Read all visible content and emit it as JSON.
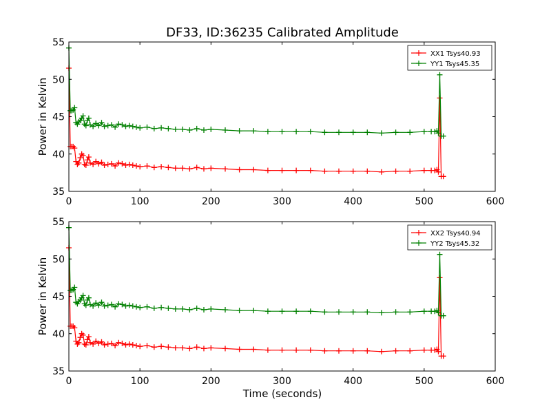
{
  "figure_title": "DF33, ID:36235 Calibrated Amplitude",
  "x_axis_label": "Time (seconds)",
  "colors": {
    "xx": "#ff0000",
    "yy": "#008000"
  },
  "chart_data": [
    {
      "type": "line",
      "ylabel": "Power in Kelvin",
      "xlabel": "",
      "xlim": [
        0,
        600
      ],
      "ylim": [
        35,
        55
      ],
      "xticks": [
        0,
        100,
        200,
        300,
        400,
        500,
        600
      ],
      "yticks": [
        35,
        40,
        45,
        50,
        55
      ],
      "legend_position": "top-right",
      "grid": false,
      "series": [
        {
          "name": "XX1 Tsys40.93",
          "color": "#ff0000",
          "marker": "+",
          "x": [
            0,
            2,
            4,
            6,
            8,
            10,
            12,
            14,
            16,
            18,
            20,
            22,
            24,
            26,
            28,
            30,
            34,
            38,
            42,
            46,
            50,
            55,
            60,
            65,
            70,
            75,
            80,
            85,
            90,
            95,
            100,
            110,
            120,
            130,
            140,
            150,
            160,
            170,
            180,
            190,
            200,
            220,
            240,
            260,
            280,
            300,
            320,
            340,
            360,
            380,
            400,
            420,
            440,
            460,
            480,
            500,
            510,
            515,
            518,
            520,
            522,
            524,
            527
          ],
          "y": [
            51.5,
            41.0,
            41.0,
            41.0,
            40.8,
            39.0,
            38.6,
            38.8,
            39.5,
            40.0,
            39.8,
            38.6,
            38.5,
            39.2,
            39.6,
            38.8,
            38.6,
            39.0,
            38.7,
            38.9,
            38.5,
            38.6,
            38.7,
            38.4,
            38.8,
            38.7,
            38.5,
            38.6,
            38.5,
            38.4,
            38.3,
            38.4,
            38.2,
            38.3,
            38.2,
            38.1,
            38.1,
            38.0,
            38.2,
            38.0,
            38.1,
            38.0,
            37.9,
            37.9,
            37.8,
            37.8,
            37.8,
            37.8,
            37.7,
            37.7,
            37.7,
            37.7,
            37.6,
            37.7,
            37.7,
            37.8,
            37.8,
            37.8,
            37.9,
            37.6,
            47.5,
            37.0,
            37.0
          ]
        },
        {
          "name": "YY1 Tsys45.35",
          "color": "#008000",
          "marker": "+",
          "x": [
            0,
            2,
            4,
            6,
            8,
            10,
            12,
            14,
            16,
            18,
            20,
            22,
            24,
            26,
            28,
            30,
            34,
            38,
            42,
            46,
            50,
            55,
            60,
            65,
            70,
            75,
            80,
            85,
            90,
            95,
            100,
            110,
            120,
            130,
            140,
            150,
            160,
            170,
            180,
            190,
            200,
            220,
            240,
            260,
            280,
            300,
            320,
            340,
            360,
            380,
            400,
            420,
            440,
            460,
            480,
            500,
            510,
            515,
            518,
            520,
            522,
            524,
            527
          ],
          "y": [
            54.2,
            45.8,
            45.8,
            45.9,
            46.2,
            44.2,
            44.0,
            44.3,
            44.5,
            44.8,
            45.1,
            44.0,
            43.8,
            44.5,
            44.8,
            43.9,
            43.7,
            44.1,
            43.8,
            44.2,
            43.7,
            43.8,
            43.9,
            43.6,
            44.0,
            43.9,
            43.7,
            43.8,
            43.7,
            43.6,
            43.5,
            43.6,
            43.4,
            43.5,
            43.4,
            43.3,
            43.3,
            43.2,
            43.4,
            43.2,
            43.3,
            43.2,
            43.1,
            43.1,
            43.0,
            43.0,
            43.0,
            43.0,
            42.9,
            42.9,
            42.9,
            42.9,
            42.8,
            42.9,
            42.9,
            43.0,
            43.0,
            43.0,
            43.1,
            42.8,
            50.6,
            42.4,
            42.4
          ]
        }
      ]
    },
    {
      "type": "line",
      "ylabel": "Power in Kelvin",
      "xlabel": "Time (seconds)",
      "xlim": [
        0,
        600
      ],
      "ylim": [
        35,
        55
      ],
      "xticks": [
        0,
        100,
        200,
        300,
        400,
        500,
        600
      ],
      "yticks": [
        35,
        40,
        45,
        50,
        55
      ],
      "legend_position": "top-right",
      "grid": false,
      "series": [
        {
          "name": "XX2 Tsys40.94",
          "color": "#ff0000",
          "marker": "+",
          "x": [
            0,
            2,
            4,
            6,
            8,
            10,
            12,
            14,
            16,
            18,
            20,
            22,
            24,
            26,
            28,
            30,
            34,
            38,
            42,
            46,
            50,
            55,
            60,
            65,
            70,
            75,
            80,
            85,
            90,
            95,
            100,
            110,
            120,
            130,
            140,
            150,
            160,
            170,
            180,
            190,
            200,
            220,
            240,
            260,
            280,
            300,
            320,
            340,
            360,
            380,
            400,
            420,
            440,
            460,
            480,
            500,
            510,
            515,
            518,
            520,
            522,
            524,
            527
          ],
          "y": [
            51.5,
            41.0,
            41.0,
            41.0,
            40.8,
            39.0,
            38.6,
            38.8,
            39.5,
            40.0,
            39.8,
            38.6,
            38.5,
            39.2,
            39.6,
            38.8,
            38.6,
            39.0,
            38.7,
            38.9,
            38.5,
            38.6,
            38.7,
            38.4,
            38.8,
            38.7,
            38.5,
            38.6,
            38.5,
            38.4,
            38.3,
            38.4,
            38.2,
            38.3,
            38.2,
            38.1,
            38.1,
            38.0,
            38.2,
            38.0,
            38.1,
            38.0,
            37.9,
            37.9,
            37.8,
            37.8,
            37.8,
            37.8,
            37.7,
            37.7,
            37.7,
            37.7,
            37.6,
            37.7,
            37.7,
            37.8,
            37.8,
            37.8,
            37.9,
            37.6,
            47.5,
            37.0,
            37.0
          ]
        },
        {
          "name": "YY2 Tsys45.32",
          "color": "#008000",
          "marker": "+",
          "x": [
            0,
            2,
            4,
            6,
            8,
            10,
            12,
            14,
            16,
            18,
            20,
            22,
            24,
            26,
            28,
            30,
            34,
            38,
            42,
            46,
            50,
            55,
            60,
            65,
            70,
            75,
            80,
            85,
            90,
            95,
            100,
            110,
            120,
            130,
            140,
            150,
            160,
            170,
            180,
            190,
            200,
            220,
            240,
            260,
            280,
            300,
            320,
            340,
            360,
            380,
            400,
            420,
            440,
            460,
            480,
            500,
            510,
            515,
            518,
            520,
            522,
            524,
            527
          ],
          "y": [
            54.2,
            45.8,
            45.8,
            45.9,
            46.2,
            44.2,
            44.0,
            44.3,
            44.5,
            44.8,
            45.1,
            44.0,
            43.8,
            44.5,
            44.8,
            43.9,
            43.7,
            44.1,
            43.8,
            44.2,
            43.7,
            43.8,
            43.9,
            43.6,
            44.0,
            43.9,
            43.7,
            43.8,
            43.7,
            43.6,
            43.5,
            43.6,
            43.4,
            43.5,
            43.4,
            43.3,
            43.3,
            43.2,
            43.4,
            43.2,
            43.3,
            43.2,
            43.1,
            43.1,
            43.0,
            43.0,
            43.0,
            43.0,
            42.9,
            42.9,
            42.9,
            42.9,
            42.8,
            42.9,
            42.9,
            43.0,
            43.0,
            43.0,
            43.1,
            42.8,
            50.6,
            42.4,
            42.4
          ]
        }
      ]
    }
  ]
}
